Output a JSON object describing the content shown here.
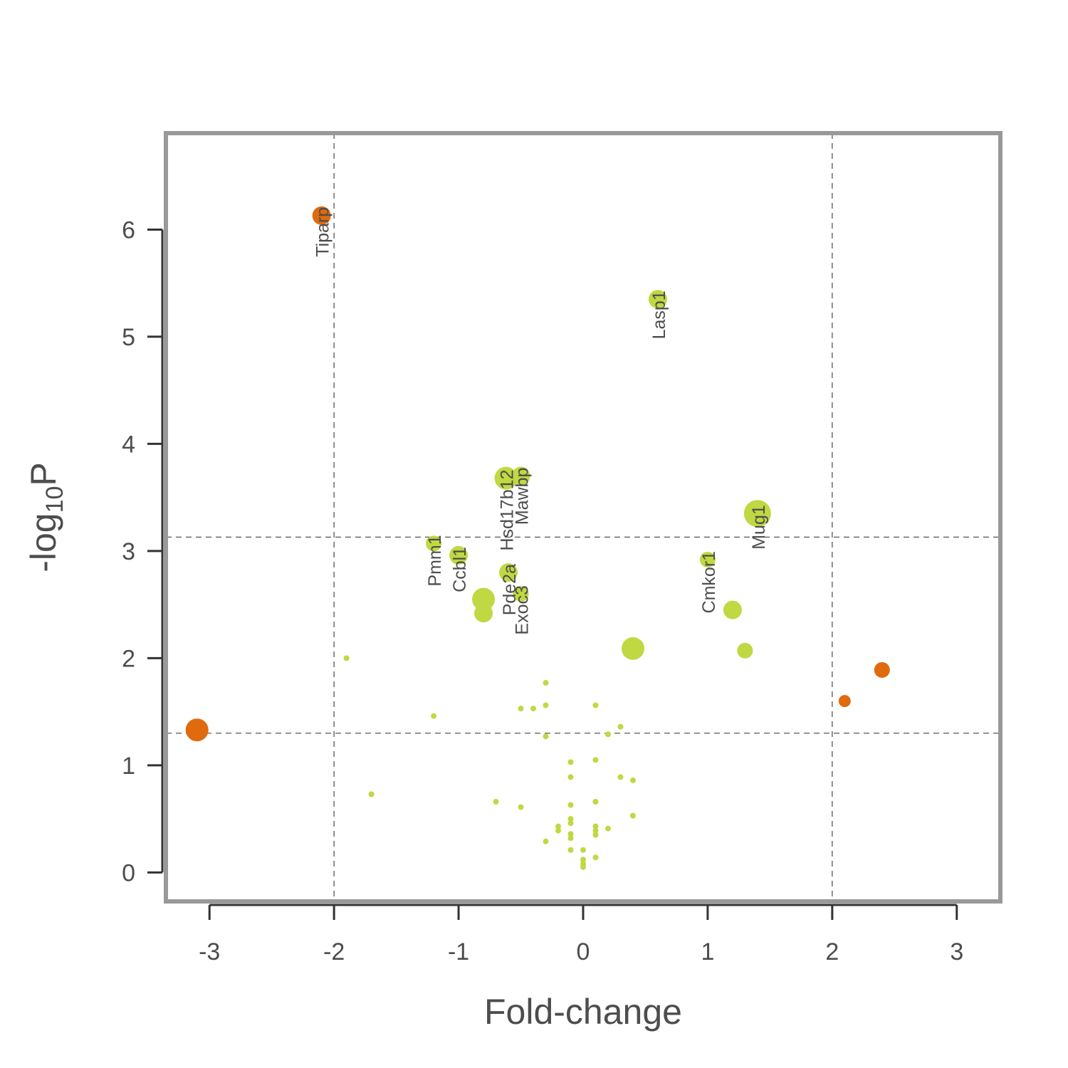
{
  "chart_data": {
    "type": "scatter",
    "xlabel": "Fold-change",
    "ylabel": {
      "base": "-log",
      "sub": "10",
      "suffix": "P"
    },
    "xlim": [
      -3.35,
      3.35
    ],
    "ylim": [
      -0.27,
      6.9
    ],
    "x_ticks": [
      {
        "value": -3,
        "label": "-3"
      },
      {
        "value": -2,
        "label": "-2"
      },
      {
        "value": -1,
        "label": "-1"
      },
      {
        "value": 0,
        "label": "0"
      },
      {
        "value": 1,
        "label": "1"
      },
      {
        "value": 2,
        "label": "2"
      },
      {
        "value": 3,
        "label": "3"
      }
    ],
    "y_ticks": [
      {
        "value": 0,
        "label": "0"
      },
      {
        "value": 1,
        "label": "1"
      },
      {
        "value": 2,
        "label": "2"
      },
      {
        "value": 3,
        "label": "3"
      },
      {
        "value": 4,
        "label": "4"
      },
      {
        "value": 5,
        "label": "5"
      },
      {
        "value": 6,
        "label": "6"
      }
    ],
    "threshold_lines": {
      "x": [
        -2,
        2
      ],
      "y": [
        1.3,
        3.13
      ]
    },
    "colors": {
      "significant": "#e06a0e",
      "other": "#c0d842",
      "frame": "#999999",
      "threshold": "#555555",
      "text": "#4d4d4d"
    },
    "grid": false,
    "legend": "none",
    "points": [
      {
        "x": -2.1,
        "y": 6.13,
        "group": "significant",
        "size": "medium",
        "label": "Tiparp"
      },
      {
        "x": -3.1,
        "y": 1.33,
        "group": "significant",
        "size": "large",
        "label": ""
      },
      {
        "x": 2.4,
        "y": 1.89,
        "group": "significant",
        "size": "small",
        "label": ""
      },
      {
        "x": 2.1,
        "y": 1.6,
        "group": "significant",
        "size": "xsmall",
        "label": ""
      },
      {
        "x": 0.6,
        "y": 5.35,
        "group": "other",
        "size": "medium",
        "label": "Lasp1"
      },
      {
        "x": -0.62,
        "y": 3.68,
        "group": "other",
        "size": "large",
        "label": "Hsd17b12"
      },
      {
        "x": -0.5,
        "y": 3.7,
        "group": "other",
        "size": "medium",
        "label": "Mawbp"
      },
      {
        "x": 1.4,
        "y": 3.35,
        "group": "other",
        "size": "xlarge",
        "label": "Mug1"
      },
      {
        "x": -1.2,
        "y": 3.07,
        "group": "other",
        "size": "small",
        "label": "Pmm1"
      },
      {
        "x": -1.0,
        "y": 2.96,
        "group": "other",
        "size": "medium",
        "label": "Ccbl1"
      },
      {
        "x": 1.0,
        "y": 2.92,
        "group": "other",
        "size": "small",
        "label": "Cmkor1"
      },
      {
        "x": -0.6,
        "y": 2.8,
        "group": "other",
        "size": "medium",
        "label": "Pde2a"
      },
      {
        "x": -0.5,
        "y": 2.6,
        "group": "other",
        "size": "small",
        "label": "Exoc3"
      },
      {
        "x": -0.8,
        "y": 2.55,
        "group": "other",
        "size": "large",
        "label": ""
      },
      {
        "x": -0.8,
        "y": 2.42,
        "group": "other",
        "size": "medium",
        "label": ""
      },
      {
        "x": 1.2,
        "y": 2.45,
        "group": "other",
        "size": "medium",
        "label": ""
      },
      {
        "x": 0.4,
        "y": 2.09,
        "group": "other",
        "size": "large",
        "label": ""
      },
      {
        "x": 1.3,
        "y": 2.07,
        "group": "other",
        "size": "small",
        "label": ""
      },
      {
        "x": -1.9,
        "y": 2.0,
        "group": "other",
        "size": "dot",
        "label": ""
      },
      {
        "x": -0.3,
        "y": 1.77,
        "group": "other",
        "size": "dot",
        "label": ""
      },
      {
        "x": -0.5,
        "y": 1.53,
        "group": "other",
        "size": "dot",
        "label": ""
      },
      {
        "x": -0.4,
        "y": 1.53,
        "group": "other",
        "size": "dot",
        "label": ""
      },
      {
        "x": -0.3,
        "y": 1.56,
        "group": "other",
        "size": "dot",
        "label": ""
      },
      {
        "x": 0.1,
        "y": 1.56,
        "group": "other",
        "size": "dot",
        "label": ""
      },
      {
        "x": -1.2,
        "y": 1.46,
        "group": "other",
        "size": "dot",
        "label": ""
      },
      {
        "x": 0.3,
        "y": 1.36,
        "group": "other",
        "size": "dot",
        "label": ""
      },
      {
        "x": 0.2,
        "y": 1.29,
        "group": "other",
        "size": "dot",
        "label": ""
      },
      {
        "x": -0.3,
        "y": 1.27,
        "group": "other",
        "size": "dot",
        "label": ""
      },
      {
        "x": 0.1,
        "y": 1.05,
        "group": "other",
        "size": "dot",
        "label": ""
      },
      {
        "x": -0.1,
        "y": 1.03,
        "group": "other",
        "size": "dot",
        "label": ""
      },
      {
        "x": -0.1,
        "y": 0.89,
        "group": "other",
        "size": "dot",
        "label": ""
      },
      {
        "x": 0.3,
        "y": 0.89,
        "group": "other",
        "size": "dot",
        "label": ""
      },
      {
        "x": 0.4,
        "y": 0.86,
        "group": "other",
        "size": "dot",
        "label": ""
      },
      {
        "x": -1.7,
        "y": 0.73,
        "group": "other",
        "size": "dot",
        "label": ""
      },
      {
        "x": -0.7,
        "y": 0.66,
        "group": "other",
        "size": "dot",
        "label": ""
      },
      {
        "x": 0.1,
        "y": 0.66,
        "group": "other",
        "size": "dot",
        "label": ""
      },
      {
        "x": -0.1,
        "y": 0.63,
        "group": "other",
        "size": "dot",
        "label": ""
      },
      {
        "x": -0.5,
        "y": 0.61,
        "group": "other",
        "size": "dot",
        "label": ""
      },
      {
        "x": 0.4,
        "y": 0.53,
        "group": "other",
        "size": "dot",
        "label": ""
      },
      {
        "x": -0.1,
        "y": 0.5,
        "group": "other",
        "size": "dot",
        "label": ""
      },
      {
        "x": -0.1,
        "y": 0.46,
        "group": "other",
        "size": "dot",
        "label": ""
      },
      {
        "x": -0.2,
        "y": 0.43,
        "group": "other",
        "size": "dot",
        "label": ""
      },
      {
        "x": 0.1,
        "y": 0.43,
        "group": "other",
        "size": "dot",
        "label": ""
      },
      {
        "x": 0.2,
        "y": 0.41,
        "group": "other",
        "size": "dot",
        "label": ""
      },
      {
        "x": -0.2,
        "y": 0.39,
        "group": "other",
        "size": "dot",
        "label": ""
      },
      {
        "x": 0.1,
        "y": 0.39,
        "group": "other",
        "size": "dot",
        "label": ""
      },
      {
        "x": -0.1,
        "y": 0.36,
        "group": "other",
        "size": "dot",
        "label": ""
      },
      {
        "x": 0.1,
        "y": 0.35,
        "group": "other",
        "size": "dot",
        "label": ""
      },
      {
        "x": -0.1,
        "y": 0.32,
        "group": "other",
        "size": "dot",
        "label": ""
      },
      {
        "x": -0.3,
        "y": 0.29,
        "group": "other",
        "size": "dot",
        "label": ""
      },
      {
        "x": -0.1,
        "y": 0.21,
        "group": "other",
        "size": "dot",
        "label": ""
      },
      {
        "x": 0.0,
        "y": 0.21,
        "group": "other",
        "size": "dot",
        "label": ""
      },
      {
        "x": 0.1,
        "y": 0.14,
        "group": "other",
        "size": "dot",
        "label": ""
      },
      {
        "x": 0.0,
        "y": 0.12,
        "group": "other",
        "size": "dot",
        "label": ""
      },
      {
        "x": 0.0,
        "y": 0.08,
        "group": "other",
        "size": "dot",
        "label": ""
      },
      {
        "x": 0.0,
        "y": 0.05,
        "group": "other",
        "size": "dot",
        "label": ""
      }
    ]
  }
}
